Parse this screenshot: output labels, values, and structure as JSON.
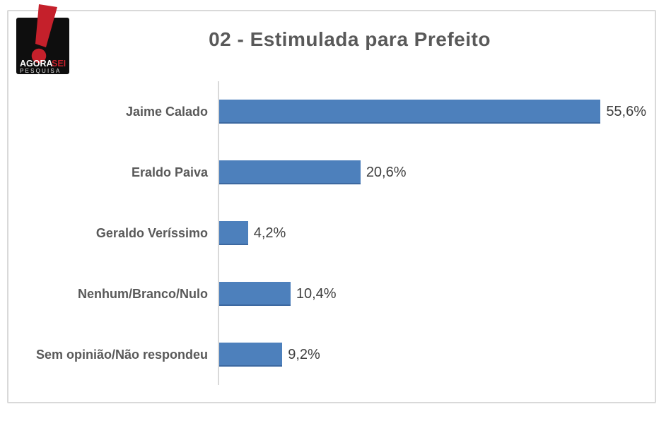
{
  "logo": {
    "brand_top": "AGORA",
    "brand_top_accent": "SEI",
    "brand_bottom": "PESQUISA"
  },
  "header": {
    "title": "02 - Estimulada para Prefeito"
  },
  "chart_data": {
    "type": "bar",
    "orientation": "horizontal",
    "title": "02 - Estimulada para Prefeito",
    "categories": [
      "Jaime Calado",
      "Eraldo Paiva",
      "Geraldo Veríssimo",
      "Nenhum/Branco/Nulo",
      "Sem opinião/Não respondeu"
    ],
    "values": [
      55.6,
      20.6,
      4.2,
      10.4,
      9.2
    ],
    "value_labels": [
      "55,6%",
      "20,6%",
      "4,2%",
      "10,4%",
      "9,2%"
    ],
    "xlabel": "",
    "ylabel": "",
    "xlim": [
      0,
      62
    ],
    "grid": false,
    "legend": false,
    "data_labels": "outside-end"
  },
  "colors": {
    "bar": "#4d80bc",
    "title_text": "#595959",
    "category_text": "#595959",
    "value_text": "#3f3f3f",
    "frame_border": "#d9d9d9",
    "axis_line": "#d9d9d9",
    "logo_black": "#0e0e0e",
    "logo_red": "#c5202b"
  }
}
